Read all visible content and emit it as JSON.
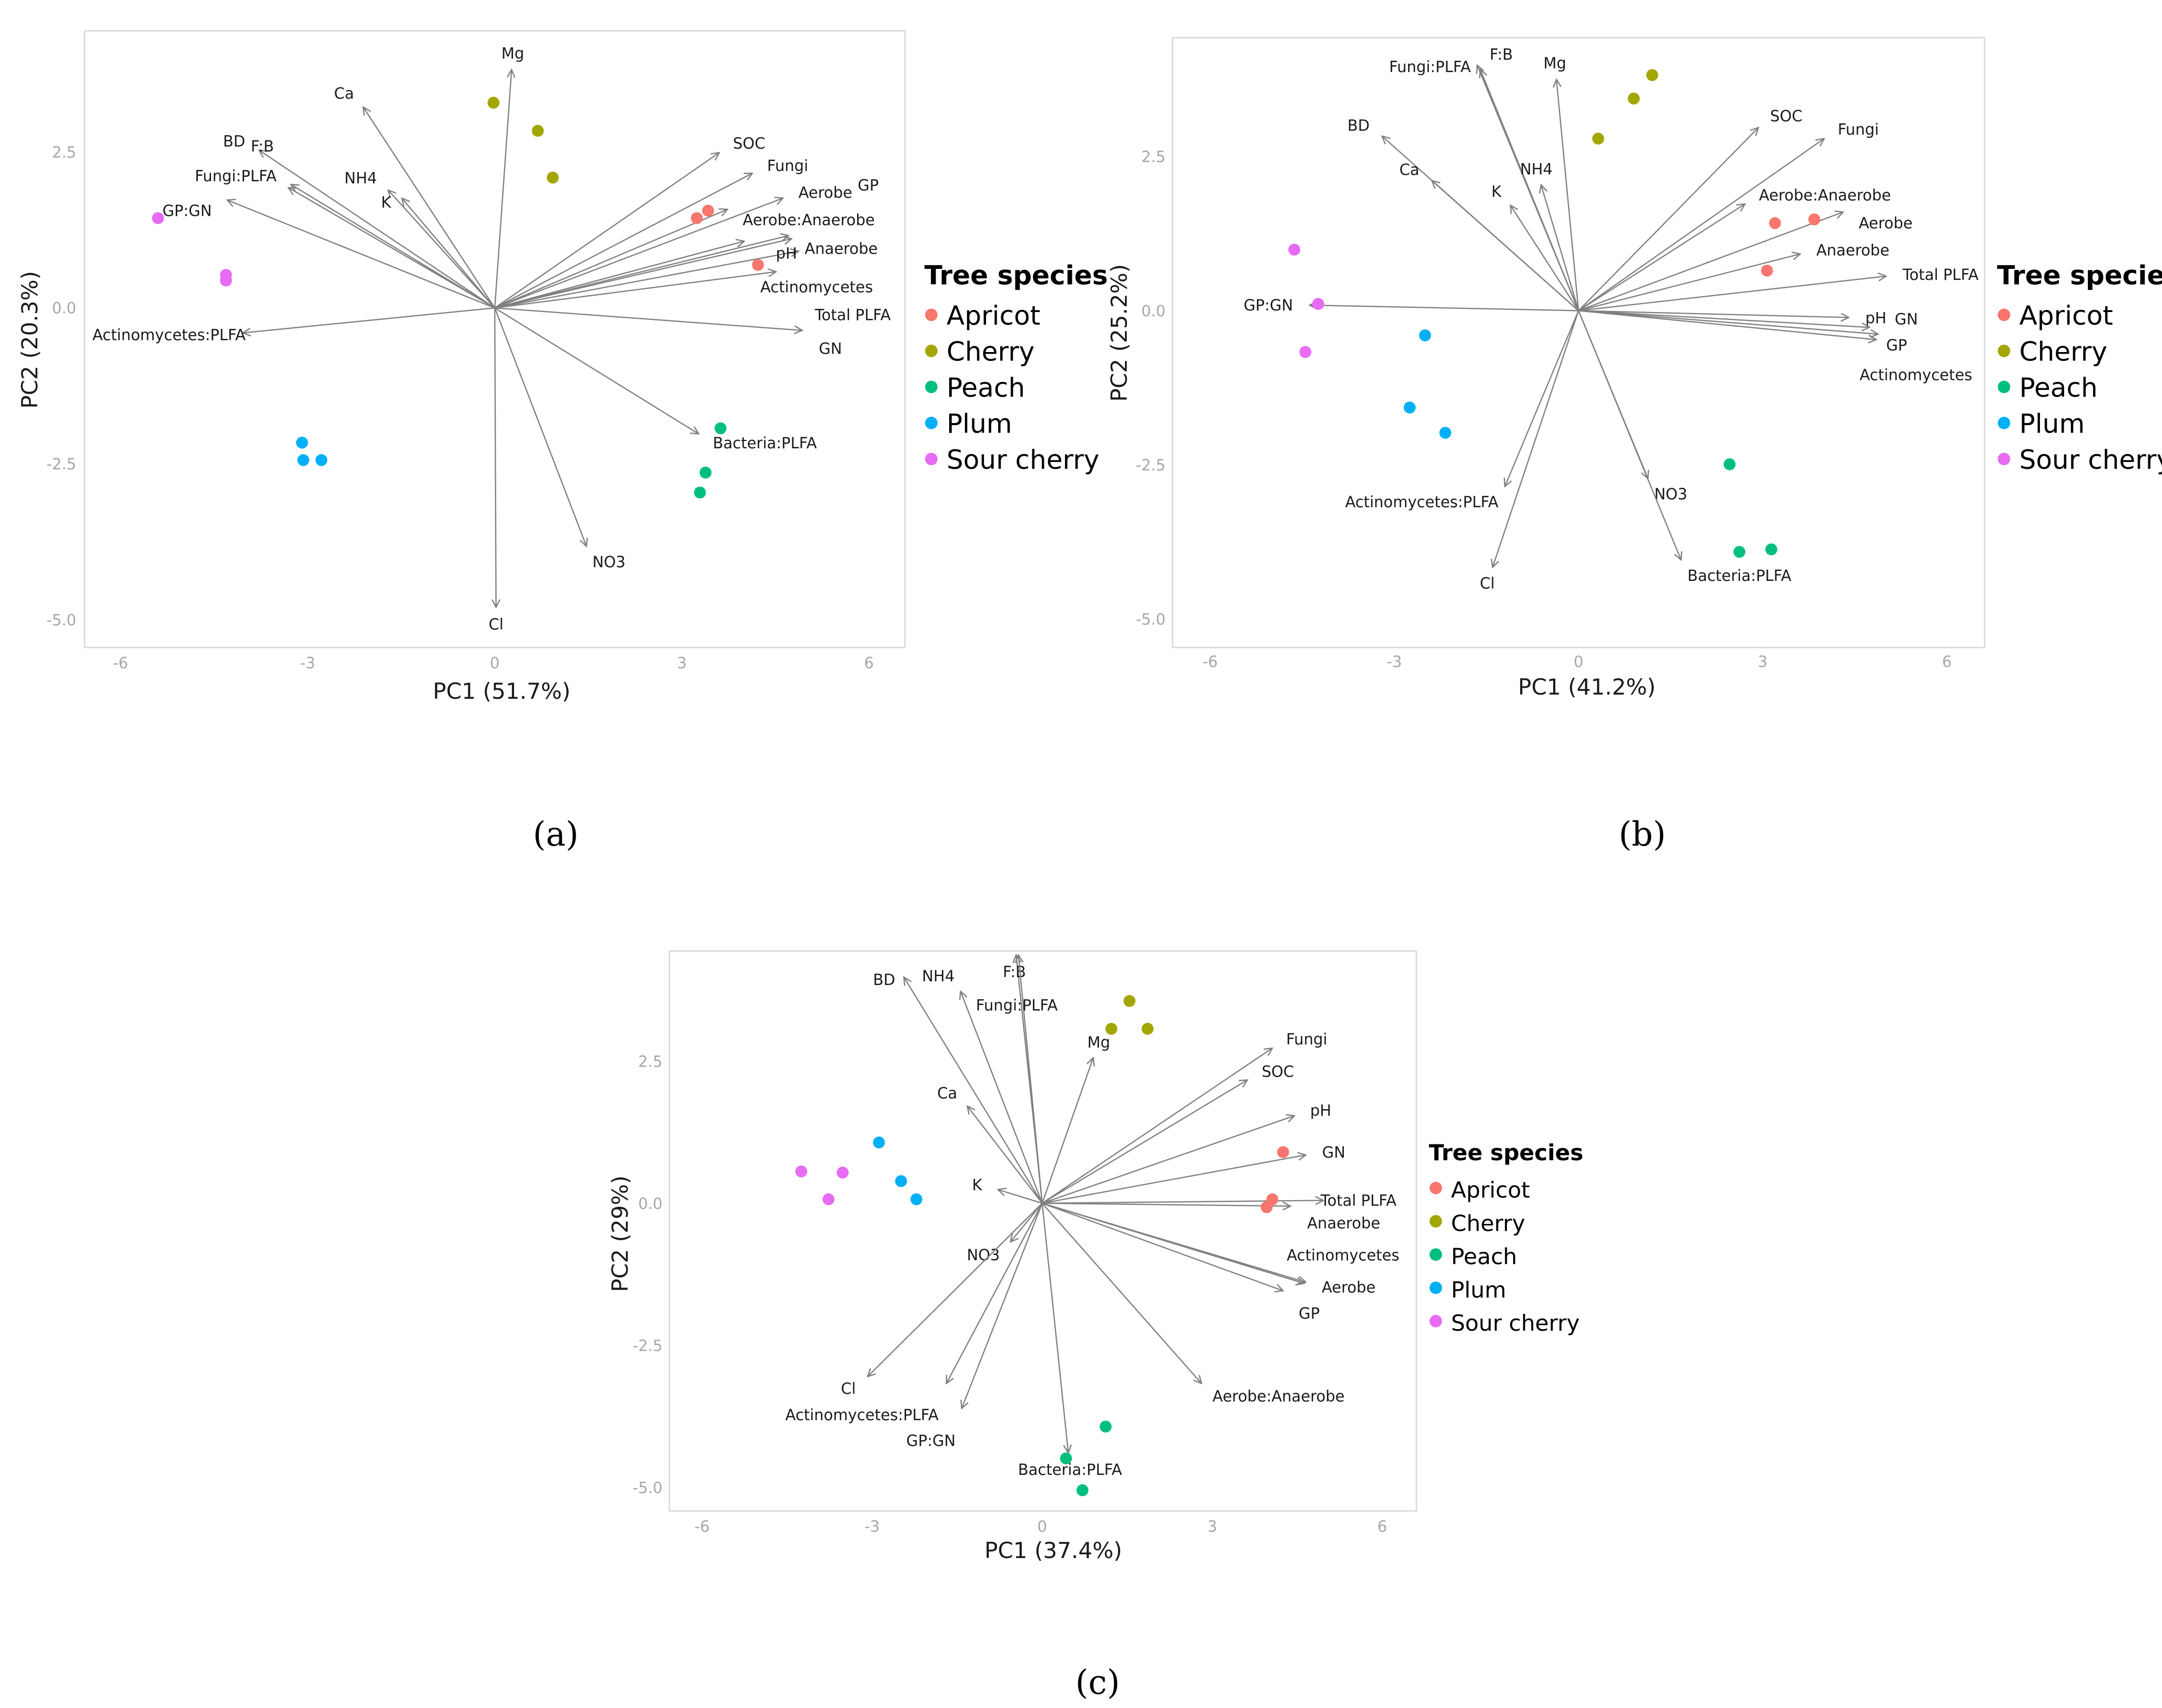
{
  "colors": {
    "Apricot": "#F8766D",
    "Cherry": "#A3A500",
    "Peach": "#00BF7D",
    "Plum": "#00B0F6",
    "Sour cherry": "#E76BF3",
    "arrow": "#808080"
  },
  "chart_data": [
    {
      "type": "scatter",
      "caption": "(a)",
      "xlabel": "PC1 (51.7%)",
      "ylabel": "PC2 (20.3%)",
      "xticks": [
        "-6",
        "-3",
        "0",
        "3",
        "6"
      ],
      "yticks": [
        "2.5",
        "0.0",
        "-2.5",
        "-5.0"
      ],
      "legend_title": "Tree species",
      "legend": [
        "Apricot",
        "Cherry",
        "Peach",
        "Plum",
        "Sour cherry"
      ],
      "legend_position": "right",
      "series": [
        {
          "name": "Apricot",
          "points": [
            [
              3.24,
              1.44
            ],
            [
              3.42,
              1.56
            ],
            [
              4.22,
              0.69
            ]
          ]
        },
        {
          "name": "Cherry",
          "points": [
            [
              -0.02,
              3.29
            ],
            [
              0.69,
              2.84
            ],
            [
              0.93,
              2.09
            ]
          ]
        },
        {
          "name": "Peach",
          "points": [
            [
              3.62,
              -1.93
            ],
            [
              3.38,
              -2.64
            ],
            [
              3.29,
              -2.96
            ]
          ]
        },
        {
          "name": "Plum",
          "points": [
            [
              -3.09,
              -2.16
            ],
            [
              -3.07,
              -2.44
            ],
            [
              -2.78,
              -2.44
            ]
          ]
        },
        {
          "name": "Sour cherry",
          "points": [
            [
              -5.4,
              1.44
            ],
            [
              -4.31,
              0.53
            ],
            [
              -4.31,
              0.44
            ]
          ]
        }
      ],
      "loadings": [
        {
          "name": "Mg",
          "x": 0.27,
          "y": 3.82
        },
        {
          "name": "Ca",
          "x": -2.11,
          "y": 3.22
        },
        {
          "name": "BD",
          "x": -3.78,
          "y": 2.53
        },
        {
          "name": "Fungi:PLFA",
          "x": -3.27,
          "y": 1.98
        },
        {
          "name": "F:B",
          "x": -3.31,
          "y": 1.93
        },
        {
          "name": "NH4",
          "x": -1.71,
          "y": 1.89
        },
        {
          "name": "K",
          "x": -1.49,
          "y": 1.76
        },
        {
          "name": "GP:GN",
          "x": -4.29,
          "y": 1.73
        },
        {
          "name": "Actinomycetes:PLFA",
          "x": -4.04,
          "y": -0.4
        },
        {
          "name": "SOC",
          "x": 3.6,
          "y": 2.49
        },
        {
          "name": "Fungi",
          "x": 4.13,
          "y": 2.16
        },
        {
          "name": "Aerobe",
          "x": 4.62,
          "y": 1.76
        },
        {
          "name": "Aerobe:Anaerobe",
          "x": 3.73,
          "y": 1.58
        },
        {
          "name": "Anaerobe",
          "x": 4.71,
          "y": 1.16
        },
        {
          "name": "Actinomycetes",
          "x": 4.0,
          "y": 1.07
        },
        {
          "name": "GP",
          "x": 4.76,
          "y": 1.11
        },
        {
          "name": "Total PLFA",
          "x": 4.87,
          "y": 0.91
        },
        {
          "name": "pH",
          "x": 4.51,
          "y": 0.58
        },
        {
          "name": "GN",
          "x": 4.93,
          "y": -0.36
        },
        {
          "name": "Bacteria:PLFA",
          "x": 3.27,
          "y": -2.02
        },
        {
          "name": "NO3",
          "x": 1.47,
          "y": -3.82
        },
        {
          "name": "Cl",
          "x": 0.02,
          "y": -4.8
        }
      ]
    },
    {
      "type": "scatter",
      "caption": "(b)",
      "xlabel": "PC1 (41.2%)",
      "ylabel": "PC2 (25.2%)",
      "xticks": [
        "-6",
        "-3",
        "0",
        "3",
        "6"
      ],
      "yticks": [
        "2.5",
        "0.0",
        "-2.5",
        "-5.0"
      ],
      "legend_title": "Tree species",
      "legend": [
        "Apricot",
        "Cherry",
        "Peach",
        "Plum",
        "Sour cherry"
      ],
      "legend_position": "right",
      "series": [
        {
          "name": "Apricot",
          "points": [
            [
              3.84,
              1.48
            ],
            [
              3.2,
              1.42
            ],
            [
              3.07,
              0.65
            ]
          ]
        },
        {
          "name": "Cherry",
          "points": [
            [
              1.2,
              3.82
            ],
            [
              0.9,
              3.44
            ],
            [
              0.32,
              2.79
            ]
          ]
        },
        {
          "name": "Peach",
          "points": [
            [
              2.46,
              -2.49
            ],
            [
              2.62,
              -3.91
            ],
            [
              3.14,
              -3.87
            ]
          ]
        },
        {
          "name": "Plum",
          "points": [
            [
              -2.5,
              -0.4
            ],
            [
              -2.75,
              -1.57
            ],
            [
              -2.17,
              -1.98
            ]
          ]
        },
        {
          "name": "Sour cherry",
          "points": [
            [
              -4.63,
              0.99
            ],
            [
              -4.24,
              0.11
            ],
            [
              -4.45,
              -0.67
            ]
          ]
        }
      ],
      "loadings": [
        {
          "name": "Fungi:PLFA",
          "x": -1.65,
          "y": 3.98
        },
        {
          "name": "F:B",
          "x": -1.6,
          "y": 3.91
        },
        {
          "name": "Mg",
          "x": -0.36,
          "y": 3.75
        },
        {
          "name": "BD",
          "x": -3.2,
          "y": 2.83
        },
        {
          "name": "Ca",
          "x": -2.39,
          "y": 2.11
        },
        {
          "name": "NH4",
          "x": -0.61,
          "y": 2.04
        },
        {
          "name": "K",
          "x": -1.11,
          "y": 1.71
        },
        {
          "name": "SOC",
          "x": 2.93,
          "y": 2.97
        },
        {
          "name": "Fungi",
          "x": 4.0,
          "y": 2.79
        },
        {
          "name": "Aerobe:Anaerobe",
          "x": 2.71,
          "y": 1.73
        },
        {
          "name": "Aerobe",
          "x": 4.31,
          "y": 1.6
        },
        {
          "name": "Anaerobe",
          "x": 3.61,
          "y": 0.92
        },
        {
          "name": "Total PLFA",
          "x": 5.01,
          "y": 0.56
        },
        {
          "name": "pH",
          "x": 4.4,
          "y": -0.11
        },
        {
          "name": "GP",
          "x": 4.74,
          "y": -0.27
        },
        {
          "name": "Actinomycetes",
          "x": 4.85,
          "y": -0.47
        },
        {
          "name": "GN",
          "x": 4.88,
          "y": -0.38
        },
        {
          "name": "GP:GN",
          "x": -4.38,
          "y": 0.09
        },
        {
          "name": "Actinomycetes:PLFA",
          "x": -1.2,
          "y": -2.85
        },
        {
          "name": "Cl",
          "x": -1.4,
          "y": -4.16
        },
        {
          "name": "NO3",
          "x": 1.13,
          "y": -2.72
        },
        {
          "name": "Bacteria:PLFA",
          "x": 1.67,
          "y": -4.04
        }
      ]
    },
    {
      "type": "scatter",
      "caption": "(c)",
      "xlabel": "PC1 (37.4%)",
      "ylabel": "PC2 (29%)",
      "xticks": [
        "-6",
        "-3",
        "0",
        "3",
        "6"
      ],
      "yticks": [
        "2.5",
        "0.0",
        "-2.5",
        "-5.0"
      ],
      "legend_title": "Tree species",
      "legend": [
        "Apricot",
        "Cherry",
        "Peach",
        "Plum",
        "Sour cherry"
      ],
      "legend_position": "right",
      "series": [
        {
          "name": "Apricot",
          "points": [
            [
              4.25,
              0.9
            ],
            [
              4.06,
              0.07
            ],
            [
              3.96,
              -0.07
            ]
          ]
        },
        {
          "name": "Cherry",
          "points": [
            [
              1.54,
              3.56
            ],
            [
              1.22,
              3.07
            ],
            [
              1.86,
              3.07
            ]
          ]
        },
        {
          "name": "Peach",
          "points": [
            [
              1.12,
              -3.93
            ],
            [
              0.42,
              -4.49
            ],
            [
              0.71,
              -5.05
            ]
          ]
        },
        {
          "name": "Plum",
          "points": [
            [
              -2.88,
              1.07
            ],
            [
              -2.49,
              0.39
            ],
            [
              -2.22,
              0.07
            ]
          ]
        },
        {
          "name": "Sour cherry",
          "points": [
            [
              -4.25,
              0.56
            ],
            [
              -3.52,
              0.54
            ],
            [
              -3.77,
              0.07
            ]
          ]
        }
      ],
      "loadings": [
        {
          "name": "F:B",
          "x": -0.46,
          "y": 4.37
        },
        {
          "name": "Fungi:PLFA",
          "x": -0.42,
          "y": 4.37
        },
        {
          "name": "BD",
          "x": -2.44,
          "y": 3.98
        },
        {
          "name": "NH4",
          "x": -1.44,
          "y": 3.73
        },
        {
          "name": "Ca",
          "x": -1.32,
          "y": 1.71
        },
        {
          "name": "Mg",
          "x": 0.9,
          "y": 2.56
        },
        {
          "name": "K",
          "x": -0.78,
          "y": 0.24
        },
        {
          "name": "NO3",
          "x": -0.56,
          "y": -0.68
        },
        {
          "name": "Fungi",
          "x": 4.06,
          "y": 2.73
        },
        {
          "name": "SOC",
          "x": 3.62,
          "y": 2.17
        },
        {
          "name": "pH",
          "x": 4.45,
          "y": 1.54
        },
        {
          "name": "GN",
          "x": 4.65,
          "y": 0.85
        },
        {
          "name": "Total PLFA",
          "x": 4.96,
          "y": 0.05
        },
        {
          "name": "Anaerobe",
          "x": 4.38,
          "y": -0.05
        },
        {
          "name": "Aerobe",
          "x": 4.65,
          "y": -1.39
        },
        {
          "name": "Actinomycetes",
          "x": 4.62,
          "y": -1.41
        },
        {
          "name": "GP",
          "x": 4.25,
          "y": -1.54
        },
        {
          "name": "Aerobe:Anaerobe",
          "x": 2.81,
          "y": -3.17
        },
        {
          "name": "Cl",
          "x": -3.08,
          "y": -3.05
        },
        {
          "name": "Actinomycetes:PLFA",
          "x": -1.69,
          "y": -3.17
        },
        {
          "name": "GP:GN",
          "x": -1.42,
          "y": -3.61
        },
        {
          "name": "Bacteria:PLFA",
          "x": 0.46,
          "y": -4.39
        }
      ]
    }
  ]
}
